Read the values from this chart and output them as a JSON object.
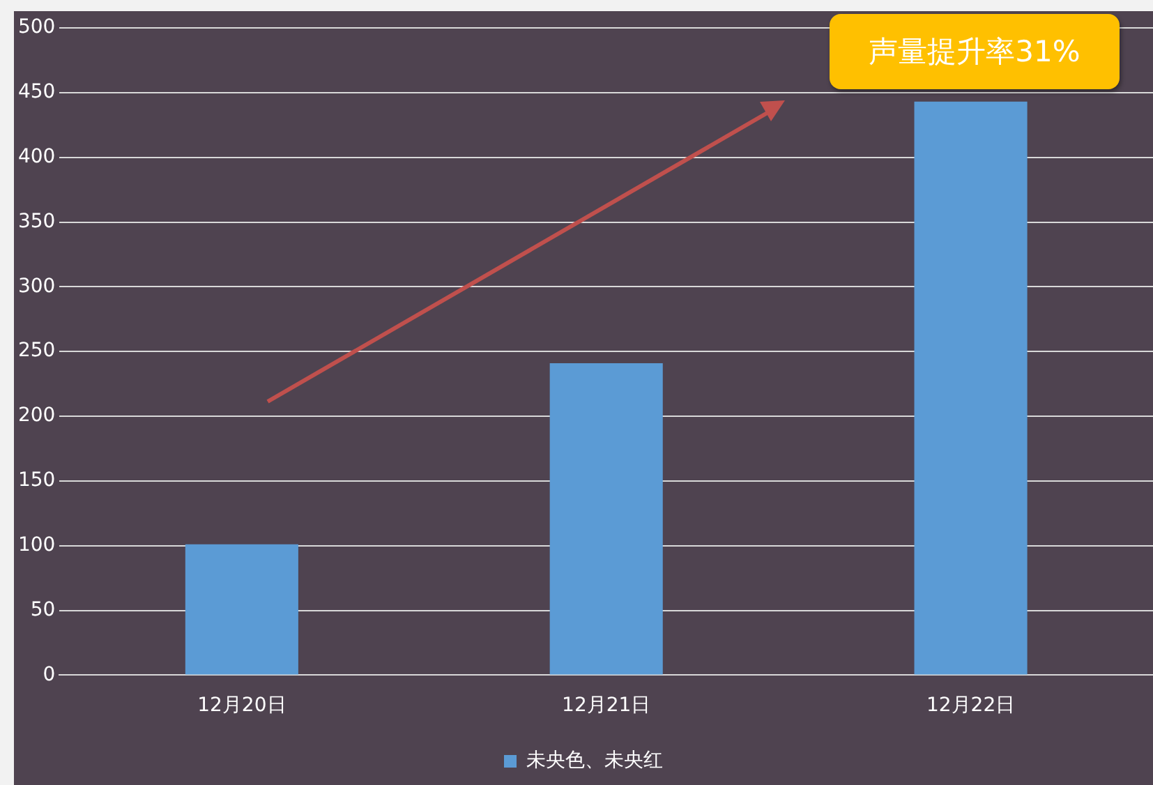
{
  "chart_data": {
    "type": "bar",
    "categories": [
      "12月20日",
      "12月21日",
      "12月22日"
    ],
    "series": [
      {
        "name": "未央色、未央红",
        "color": "#5b9bd5",
        "values": [
          101,
          241,
          443
        ]
      }
    ],
    "ylim": [
      0,
      500
    ],
    "yticks": [
      0,
      50,
      100,
      150,
      200,
      250,
      300,
      350,
      400,
      450,
      500
    ],
    "grid": "y",
    "legend": "bottom",
    "annotations": [
      "声量提升率31%"
    ]
  }
}
